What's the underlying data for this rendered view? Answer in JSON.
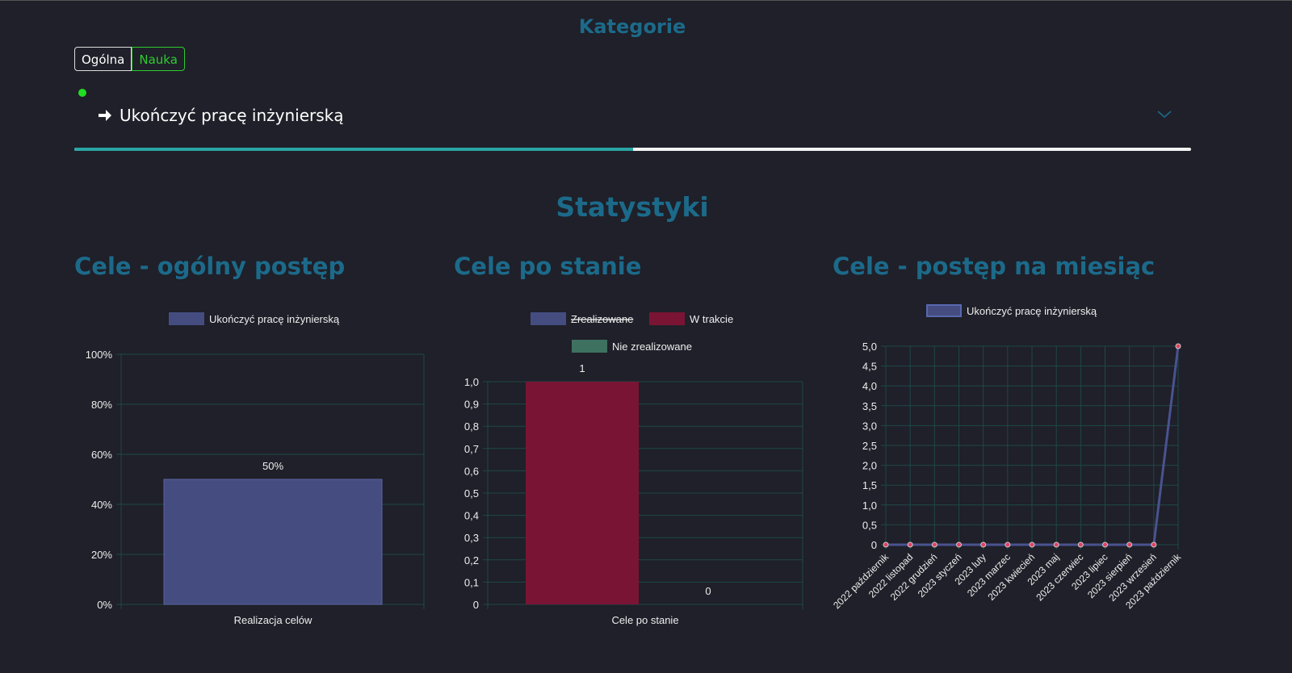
{
  "categories_title": "Kategorie",
  "category_buttons": [
    {
      "label": "Ogólna"
    },
    {
      "label": "Nauka"
    }
  ],
  "goal": {
    "title": "Ukończyć pracę inżynierską",
    "progress_percent": 50,
    "status_color": "#22dd22",
    "icon": "arrow-right-icon"
  },
  "stats_title": "Statystyki",
  "sections": [
    {
      "title": "Cele - ogólny postęp"
    },
    {
      "title": "Cele po stanie"
    },
    {
      "title": "Cele - postęp na miesiąc"
    }
  ],
  "colors": {
    "accent": "#1c6a8a",
    "progress": "#2aa5a5",
    "series_blue": "#454d80",
    "series_red": "#7a1434",
    "series_green": "#3e7160",
    "grid": "#1e4848"
  },
  "chart_data": [
    {
      "type": "bar",
      "categories": [
        "Realizacja celów"
      ],
      "series": [
        {
          "name": "Ukończyć pracę inżynierską",
          "values": [
            50
          ],
          "color": "#454d80"
        }
      ],
      "data_labels": [
        "50%"
      ],
      "ylim": [
        0,
        100
      ],
      "yticks": [
        "0%",
        "20%",
        "40%",
        "60%",
        "80%",
        "100%"
      ],
      "grid": true,
      "legend": "top"
    },
    {
      "type": "bar",
      "categories": [
        "Cele po stanie"
      ],
      "series": [
        {
          "name": "Zrealizowane",
          "values": [
            null
          ],
          "color": "#454d80",
          "hidden": true
        },
        {
          "name": "W trakcie",
          "values": [
            1
          ],
          "color": "#7a1434"
        },
        {
          "name": "Nie zrealizowane",
          "values": [
            0
          ],
          "color": "#3e7160"
        }
      ],
      "data_labels": [
        "1",
        "0"
      ],
      "ylim": [
        0,
        1
      ],
      "yticks": [
        "0",
        "0,1",
        "0,2",
        "0,3",
        "0,4",
        "0,5",
        "0,6",
        "0,7",
        "0,8",
        "0,9",
        "1,0"
      ],
      "grid": true,
      "legend": "top"
    },
    {
      "type": "line",
      "categories": [
        "2022 październik",
        "2022 listopad",
        "2022 grudzień",
        "2023 styczeń",
        "2023 luty",
        "2023 marzec",
        "2023 kwiecień",
        "2023 maj",
        "2023 czerwiec",
        "2023 lipiec",
        "2023 sierpień",
        "2023 wrzesień",
        "2023 październik"
      ],
      "series": [
        {
          "name": "Ukończyć pracę inżynierską",
          "values": [
            0,
            0,
            0,
            0,
            0,
            0,
            0,
            0,
            0,
            0,
            0,
            0,
            5
          ],
          "color": "#454d80"
        }
      ],
      "ylim": [
        0,
        5
      ],
      "yticks": [
        "0",
        "0,5",
        "1,0",
        "1,5",
        "2,0",
        "2,5",
        "3,0",
        "3,5",
        "4,0",
        "4,5",
        "5,0"
      ],
      "grid": true,
      "legend": "top"
    }
  ]
}
